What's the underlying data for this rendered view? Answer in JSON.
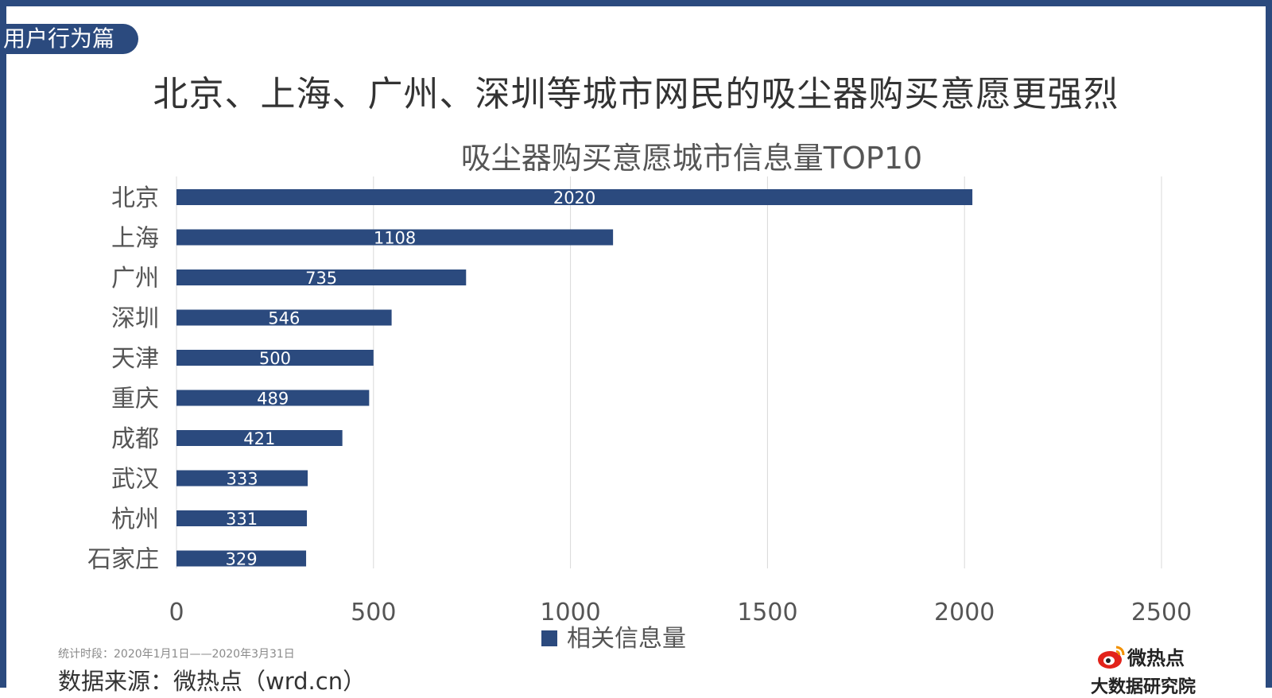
{
  "section_tag": "用户行为篇",
  "page_title": "北京、上海、广州、深圳等城市网民的吸尘器购买意愿更强烈",
  "colors": {
    "bar": "#2b4a7e",
    "frame": "#2b4a7e",
    "grid": "#d9d9d9"
  },
  "chart_data": {
    "type": "bar",
    "orientation": "horizontal",
    "title": "吸尘器购买意愿城市信息量TOP10",
    "categories": [
      "北京",
      "上海",
      "广州",
      "深圳",
      "天津",
      "重庆",
      "成都",
      "武汉",
      "杭州",
      "石家庄"
    ],
    "series": [
      {
        "name": "相关信息量",
        "values": [
          2020,
          1108,
          735,
          546,
          500,
          489,
          421,
          333,
          331,
          329
        ]
      }
    ],
    "xlim": [
      0,
      2500
    ],
    "xticks": [
      "0",
      "500",
      "1000",
      "1500",
      "2000",
      "2500"
    ],
    "grid": true,
    "data_labels": true,
    "legend": "bottom"
  },
  "footer": {
    "period": "统计时段：2020年1月1日——2020年3月31日",
    "source": "数据来源：微热点（wrd.cn）",
    "logo_top": "微热点",
    "logo_bottom": "大数据研究院"
  }
}
